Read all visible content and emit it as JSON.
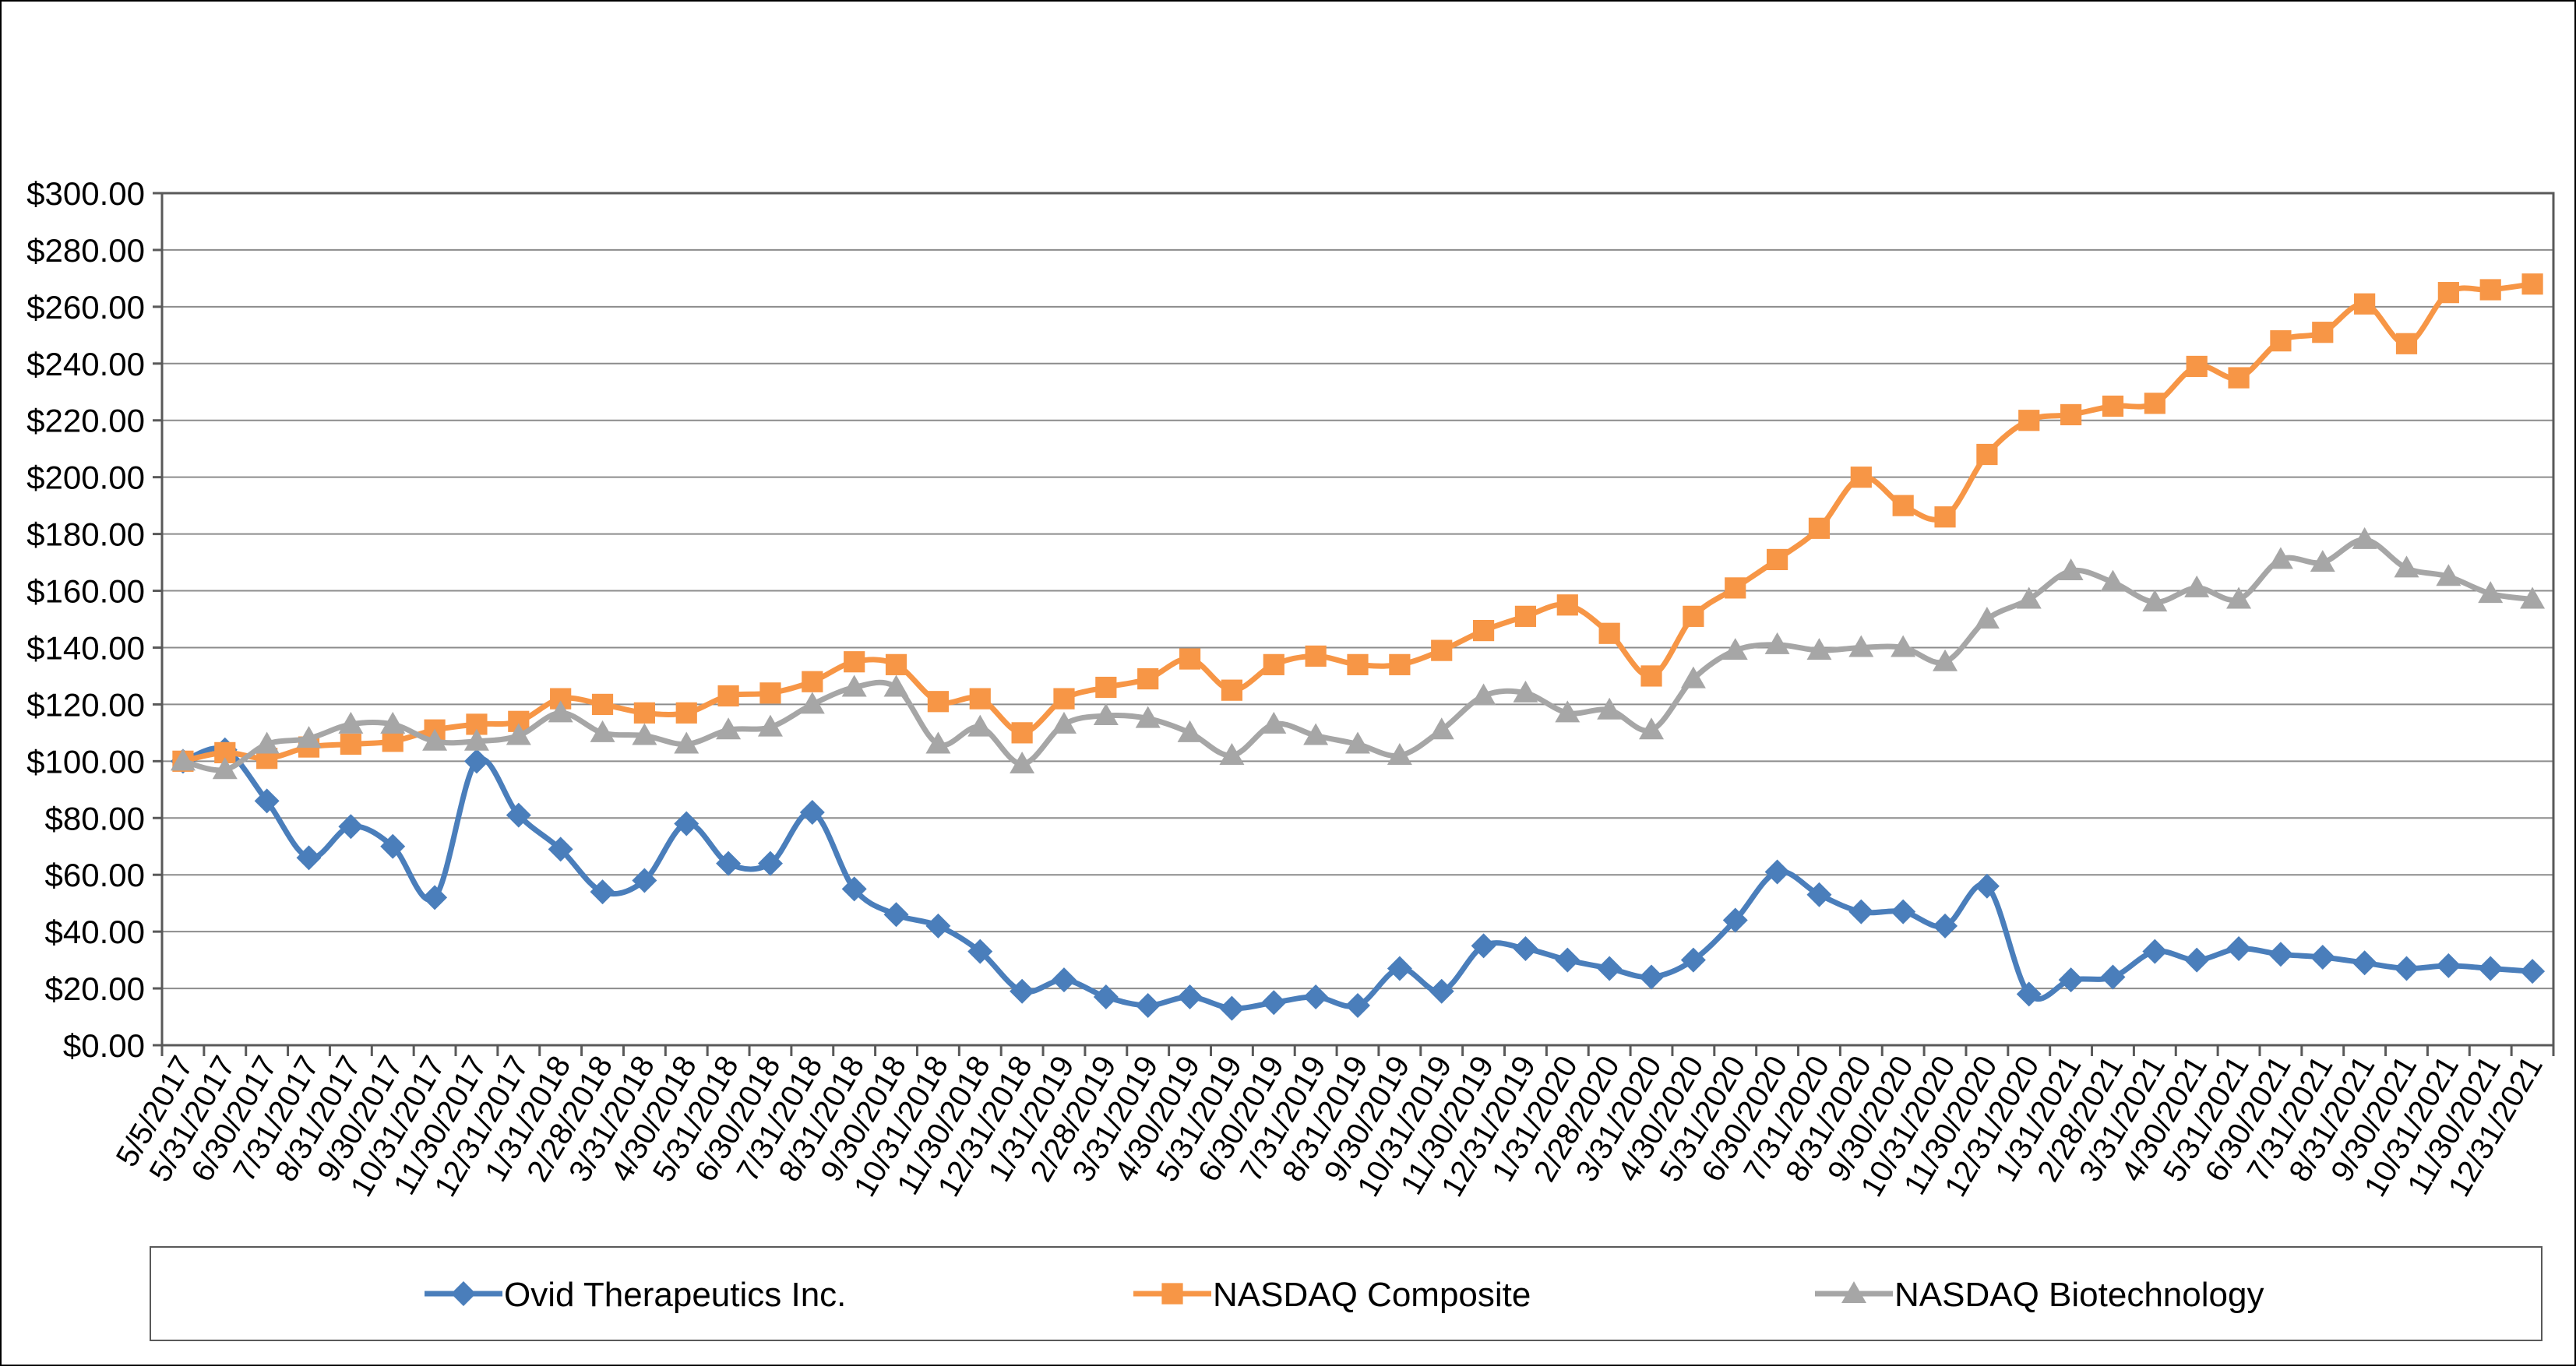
{
  "chart_data": {
    "type": "line",
    "x": [
      "5/5/2017",
      "5/31/2017",
      "6/30/2017",
      "7/31/2017",
      "8/31/2017",
      "9/30/2017",
      "10/31/2017",
      "11/30/2017",
      "12/31/2017",
      "1/31/2018",
      "2/28/2018",
      "3/31/2018",
      "4/30/2018",
      "5/31/2018",
      "6/30/2018",
      "7/31/2018",
      "8/31/2018",
      "9/30/2018",
      "10/31/2018",
      "11/30/2018",
      "12/31/2018",
      "1/31/2019",
      "2/28/2019",
      "3/31/2019",
      "4/30/2019",
      "5/31/2019",
      "6/30/2019",
      "7/31/2019",
      "8/31/2019",
      "9/30/2019",
      "10/31/2019",
      "11/30/2019",
      "12/31/2019",
      "1/31/2020",
      "2/28/2020",
      "3/31/2020",
      "4/30/2020",
      "5/31/2020",
      "6/30/2020",
      "7/31/2020",
      "8/31/2020",
      "9/30/2020",
      "10/31/2020",
      "11/30/2020",
      "12/31/2020",
      "1/31/2021",
      "2/28/2021",
      "3/31/2021",
      "4/30/2021",
      "5/31/2021",
      "6/30/2021",
      "7/31/2021",
      "8/31/2021",
      "9/30/2021",
      "10/31/2021",
      "11/30/2021",
      "12/31/2021"
    ],
    "y_ticks": [
      "$0.00",
      "$20.00",
      "$40.00",
      "$60.00",
      "$80.00",
      "$100.00",
      "$120.00",
      "$140.00",
      "$160.00",
      "$180.00",
      "$200.00",
      "$220.00",
      "$240.00",
      "$260.00",
      "$280.00",
      "$300.00"
    ],
    "ylim": [
      0,
      300
    ],
    "grid": true,
    "legend_position": "bottom",
    "series": [
      {
        "name": "Ovid Therapeutics Inc.",
        "color": "#4a7ebb",
        "marker": "diamond",
        "values": [
          100,
          104,
          86,
          66,
          77,
          70,
          52,
          100,
          81,
          69,
          54,
          58,
          78,
          64,
          64,
          82,
          55,
          46,
          42,
          33,
          19,
          23,
          17,
          14,
          17,
          13,
          15,
          17,
          14,
          27,
          19,
          35,
          34,
          30,
          27,
          24,
          30,
          44,
          61,
          53,
          47,
          47,
          42,
          56,
          18,
          23,
          24,
          33,
          30,
          34,
          32,
          31,
          29,
          27,
          28,
          27,
          26
        ]
      },
      {
        "name": "NASDAQ Composite",
        "color": "#f79646",
        "marker": "square",
        "values": [
          100,
          103,
          101,
          105,
          106,
          107,
          111,
          113,
          114,
          122,
          120,
          117,
          117,
          123,
          124,
          128,
          135,
          134,
          121,
          122,
          110,
          122,
          126,
          129,
          136,
          125,
          134,
          137,
          134,
          134,
          139,
          146,
          151,
          155,
          145,
          130,
          151,
          161,
          171,
          182,
          200,
          190,
          186,
          208,
          220,
          222,
          225,
          226,
          239,
          235,
          248,
          251,
          261,
          247,
          265,
          266,
          268
        ]
      },
      {
        "name": "NASDAQ Biotechnology",
        "color": "#a6a6a6",
        "marker": "triangle",
        "values": [
          100,
          97,
          106,
          108,
          113,
          113,
          107,
          107,
          109,
          117,
          110,
          109,
          106,
          111,
          112,
          120,
          126,
          126,
          106,
          112,
          99,
          113,
          116,
          115,
          110,
          102,
          113,
          109,
          106,
          102,
          111,
          123,
          124,
          117,
          118,
          111,
          129,
          139,
          141,
          139,
          140,
          140,
          135,
          150,
          157,
          167,
          163,
          156,
          161,
          157,
          171,
          170,
          178,
          168,
          165,
          159,
          157
        ]
      }
    ]
  }
}
